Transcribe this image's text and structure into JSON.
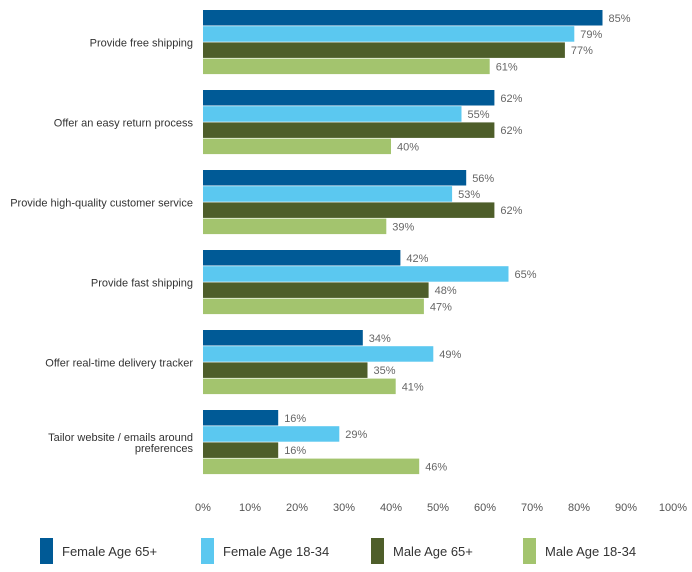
{
  "chart_data": {
    "type": "bar",
    "orientation": "horizontal",
    "categories": [
      "Provide free shipping",
      "Offer an easy return process",
      "Provide high-quality customer service",
      "Provide fast shipping",
      "Offer real-time delivery tracker",
      "Tailor website / emails around preferences"
    ],
    "series": [
      {
        "name": "Female Age 65+",
        "color": "#005a96",
        "values": [
          85,
          62,
          56,
          42,
          34,
          16
        ]
      },
      {
        "name": "Female Age 18-34",
        "color": "#5bc8f0",
        "values": [
          79,
          55,
          53,
          65,
          49,
          29
        ]
      },
      {
        "name": "Male Age 65+",
        "color": "#4e5e2a",
        "values": [
          77,
          62,
          62,
          48,
          35,
          16
        ]
      },
      {
        "name": "Male Age 18-34",
        "color": "#a3c46e",
        "values": [
          61,
          40,
          39,
          47,
          41,
          46
        ]
      }
    ],
    "value_suffix": "%",
    "xlim": [
      0,
      100
    ],
    "xticks": [
      0,
      10,
      20,
      30,
      40,
      50,
      60,
      70,
      80,
      90,
      100
    ],
    "xtick_labels": [
      "0%",
      "10%",
      "20%",
      "30%",
      "40%",
      "50%",
      "60%",
      "70%",
      "80%",
      "90%",
      "100%"
    ],
    "title": "",
    "xlabel": "",
    "ylabel": "",
    "grid": false,
    "legend_position": "bottom"
  }
}
